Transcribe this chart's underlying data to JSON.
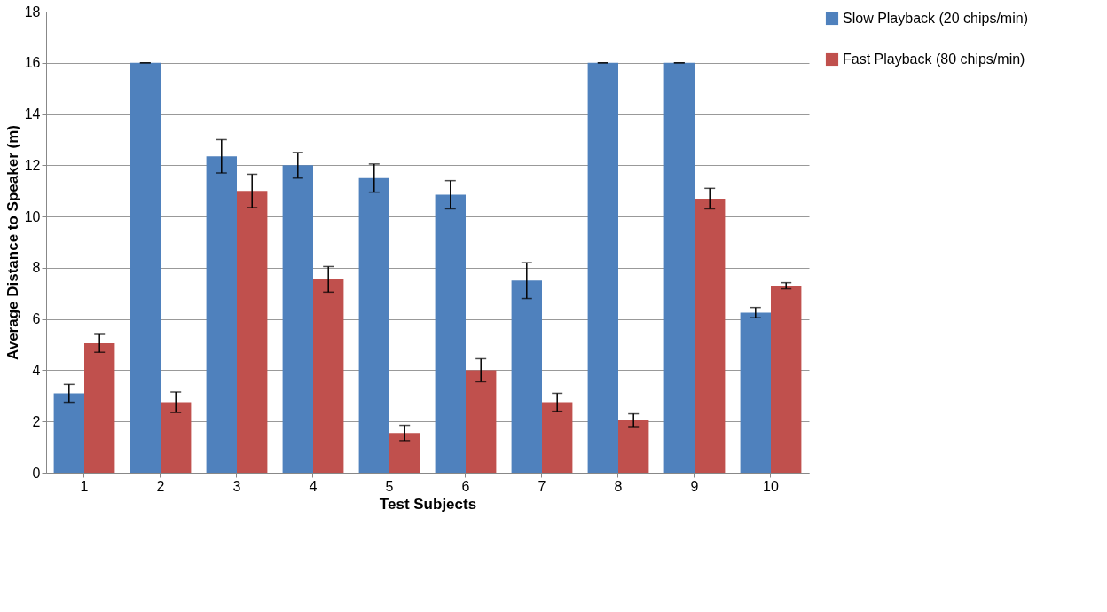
{
  "chart_data": {
    "type": "bar",
    "xlabel": "Test Subjects",
    "ylabel": "Average Distance to Speaker (m)",
    "categories": [
      "1",
      "2",
      "3",
      "4",
      "5",
      "6",
      "7",
      "8",
      "9",
      "10"
    ],
    "series": [
      {
        "name": "Slow Playback (20 chips/min)",
        "color": "#4f81bd",
        "values": [
          3.1,
          16,
          12.35,
          12.0,
          11.5,
          10.85,
          7.5,
          16,
          16,
          6.25
        ],
        "errors": [
          0.35,
          0,
          0.65,
          0.5,
          0.55,
          0.55,
          0.7,
          0,
          0,
          0.2
        ]
      },
      {
        "name": "Fast Playback (80 chips/min)",
        "color": "#c0504d",
        "values": [
          5.05,
          2.75,
          11.0,
          7.55,
          1.55,
          4.0,
          2.75,
          2.05,
          10.7,
          7.3
        ],
        "errors": [
          0.35,
          0.4,
          0.65,
          0.5,
          0.3,
          0.45,
          0.35,
          0.25,
          0.4,
          0.12
        ]
      }
    ],
    "ylim": [
      0,
      18
    ],
    "yticks": [
      0,
      2,
      4,
      6,
      8,
      10,
      12,
      14,
      16,
      18
    ],
    "grid": "y",
    "legend": "right"
  }
}
